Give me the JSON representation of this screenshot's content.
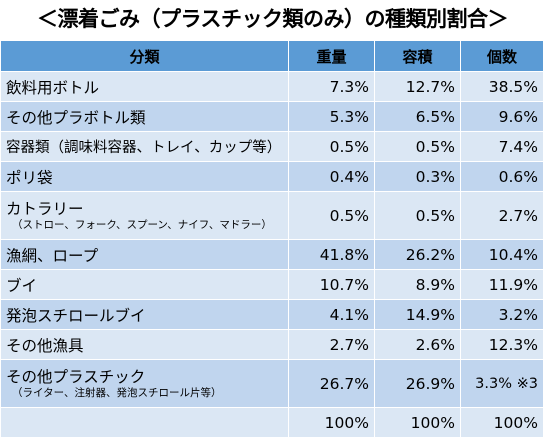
{
  "title": "＜漂着ごみ（プラスチック類のみ）の種類別割合＞",
  "headers": {
    "category": "分類",
    "weight": "重量",
    "volume": "容積",
    "count": "個数"
  },
  "rows": [
    {
      "name": "飲料用ボトル",
      "sub": "",
      "weight": "7.3%",
      "volume": "12.7%",
      "count": "38.5%"
    },
    {
      "name": "その他プラボトル類",
      "sub": "",
      "weight": "5.3%",
      "volume": "6.5%",
      "count": "9.6%"
    },
    {
      "name": "容器類（調味料容器、トレイ、カップ等）",
      "sub": "",
      "weight": "0.5%",
      "volume": "0.5%",
      "count": "7.4%"
    },
    {
      "name": "ポリ袋",
      "sub": "",
      "weight": "0.4%",
      "volume": "0.3%",
      "count": "0.6%"
    },
    {
      "name": "カトラリー",
      "sub": "（ストロー、フォーク、スプーン、ナイフ、マドラー）",
      "weight": "0.5%",
      "volume": "0.5%",
      "count": "2.7%"
    },
    {
      "name": "漁網、ロープ",
      "sub": "",
      "weight": "41.8%",
      "volume": "26.2%",
      "count": "10.4%"
    },
    {
      "name": "ブイ",
      "sub": "",
      "weight": "10.7%",
      "volume": "8.9%",
      "count": "11.9%"
    },
    {
      "name": "発泡スチロールブイ",
      "sub": "",
      "weight": "4.1%",
      "volume": "14.9%",
      "count": "3.2%"
    },
    {
      "name": "その他漁具",
      "sub": "",
      "weight": "2.7%",
      "volume": "2.6%",
      "count": "12.3%"
    },
    {
      "name": "その他プラスチック",
      "sub": "（ライター、注射器、発泡スチロール片等）",
      "weight": "26.7%",
      "volume": "26.9%",
      "count": "3.3% ※3"
    }
  ],
  "totals": {
    "name": "",
    "weight": "100%",
    "volume": "100%",
    "count": "100%"
  },
  "colors": {
    "header": "#5b9bd5",
    "row_light": "#dbe7f4",
    "row_dark": "#c0d5ee"
  }
}
